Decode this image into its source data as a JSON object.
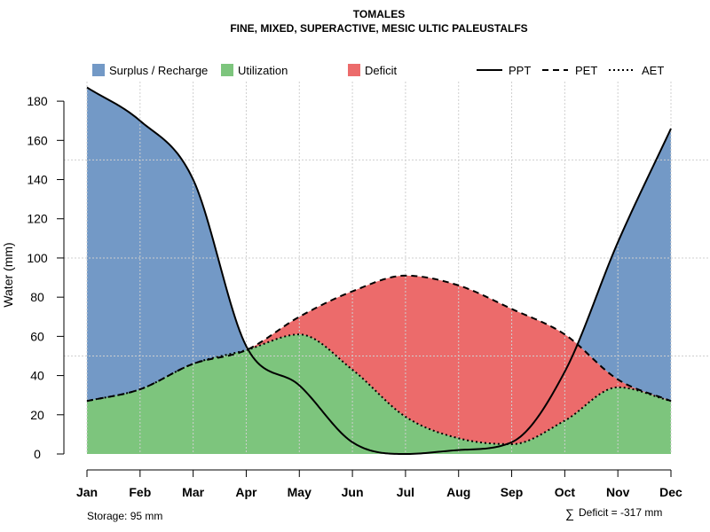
{
  "chart_data": {
    "type": "area",
    "title": "TOMALES",
    "subtitle": "FINE, MIXED, SUPERACTIVE, MESIC ULTIC PALEUSTALFS",
    "xlabel": "",
    "ylabel": "Water (mm)",
    "categories": [
      "Jan",
      "Feb",
      "Mar",
      "Apr",
      "May",
      "Jun",
      "Jul",
      "Aug",
      "Sep",
      "Oct",
      "Nov",
      "Dec"
    ],
    "ylim": [
      0,
      190
    ],
    "yticks": [
      0,
      20,
      40,
      60,
      80,
      100,
      120,
      140,
      160,
      180
    ],
    "grid": true,
    "series": [
      {
        "name": "PPT",
        "style": "solid",
        "values": [
          187,
          170,
          140,
          55,
          35,
          6,
          0,
          2,
          6,
          42,
          108,
          166
        ]
      },
      {
        "name": "PET",
        "style": "dashed",
        "values": [
          27,
          33,
          46,
          53,
          70,
          83,
          91,
          86,
          74,
          61,
          38,
          27
        ]
      },
      {
        "name": "AET",
        "style": "dotted",
        "values": [
          27,
          33,
          46,
          53,
          61,
          43,
          19,
          8,
          5,
          17,
          34,
          27
        ]
      }
    ],
    "legend": {
      "position": "top",
      "fills": [
        {
          "label": "Surplus / Recharge",
          "color": "#7399c6"
        },
        {
          "label": "Utilization",
          "color": "#7dc57d"
        },
        {
          "label": "Deficit",
          "color": "#ec6b6b"
        }
      ],
      "lines": [
        {
          "label": "PPT",
          "style": "solid"
        },
        {
          "label": "PET",
          "style": "dashed"
        },
        {
          "label": "AET",
          "style": "dotted"
        }
      ]
    },
    "annotations": {
      "storage": "Storage: 95 mm",
      "deficit_symbol": "∑",
      "deficit": "Deficit = -317 mm"
    }
  }
}
